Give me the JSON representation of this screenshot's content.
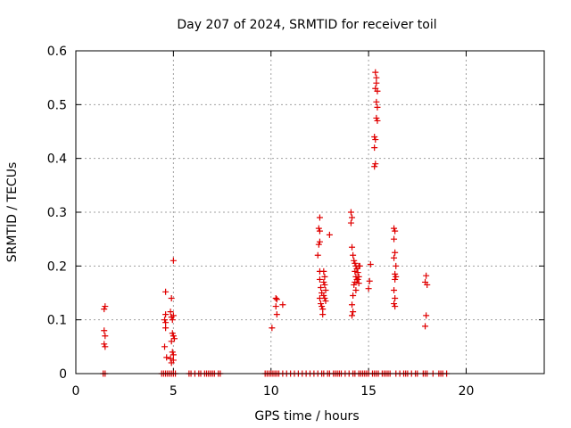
{
  "chart_data": {
    "type": "scatter",
    "title": "Day 207 of 2024, SRMTID for receiver toil",
    "xlabel": "GPS time / hours",
    "ylabel": "SRMTID / TECUs",
    "xlim": [
      0,
      24
    ],
    "ylim": [
      0,
      0.6
    ],
    "x_ticks": [
      0,
      5,
      10,
      15,
      20
    ],
    "x_tick_labels": [
      "0",
      "5",
      "10",
      "15",
      "20"
    ],
    "y_ticks": [
      0,
      0.1,
      0.2,
      0.3,
      0.4,
      0.5,
      0.6
    ],
    "y_tick_labels": [
      "0",
      "0.1",
      "0.2",
      "0.3",
      "0.4",
      "0.5",
      "0.6"
    ],
    "grid": true,
    "marker": "+",
    "color": "#e00000",
    "series": [
      {
        "name": "SRMTID",
        "points": [
          [
            1.4,
            0.0
          ],
          [
            1.5,
            0.0
          ],
          [
            1.45,
            0.12
          ],
          [
            1.5,
            0.125
          ],
          [
            1.45,
            0.08
          ],
          [
            1.5,
            0.07
          ],
          [
            1.45,
            0.055
          ],
          [
            1.5,
            0.05
          ],
          [
            4.4,
            0.0
          ],
          [
            4.5,
            0.0
          ],
          [
            4.6,
            0.0
          ],
          [
            4.7,
            0.0
          ],
          [
            4.8,
            0.0
          ],
          [
            4.9,
            0.0
          ],
          [
            5.0,
            0.0
          ],
          [
            5.1,
            0.0
          ],
          [
            4.6,
            0.152
          ],
          [
            4.6,
            0.11
          ],
          [
            4.55,
            0.1
          ],
          [
            4.6,
            0.095
          ],
          [
            4.6,
            0.085
          ],
          [
            4.55,
            0.05
          ],
          [
            4.65,
            0.03
          ],
          [
            4.85,
            0.115
          ],
          [
            4.9,
            0.105
          ],
          [
            4.95,
            0.1
          ],
          [
            5.0,
            0.108
          ],
          [
            4.9,
            0.14
          ],
          [
            5.0,
            0.21
          ],
          [
            4.95,
            0.075
          ],
          [
            5.0,
            0.07
          ],
          [
            5.05,
            0.065
          ],
          [
            4.9,
            0.06
          ],
          [
            4.95,
            0.04
          ],
          [
            5.0,
            0.035
          ],
          [
            4.85,
            0.028
          ],
          [
            4.9,
            0.02
          ],
          [
            5.0,
            0.025
          ],
          [
            5.8,
            0.0
          ],
          [
            5.9,
            0.0
          ],
          [
            6.1,
            0.0
          ],
          [
            6.3,
            0.0
          ],
          [
            6.4,
            0.0
          ],
          [
            6.6,
            0.0
          ],
          [
            6.7,
            0.0
          ],
          [
            6.8,
            0.0
          ],
          [
            6.9,
            0.0
          ],
          [
            7.0,
            0.0
          ],
          [
            7.1,
            0.0
          ],
          [
            7.3,
            0.0
          ],
          [
            7.4,
            0.0
          ],
          [
            9.7,
            0.0
          ],
          [
            9.8,
            0.0
          ],
          [
            9.9,
            0.0
          ],
          [
            10.0,
            0.0
          ],
          [
            10.1,
            0.0
          ],
          [
            10.2,
            0.0
          ],
          [
            10.3,
            0.0
          ],
          [
            10.4,
            0.0
          ],
          [
            10.6,
            0.0
          ],
          [
            10.8,
            0.0
          ],
          [
            11.0,
            0.0
          ],
          [
            11.2,
            0.0
          ],
          [
            11.4,
            0.0
          ],
          [
            11.6,
            0.0
          ],
          [
            11.8,
            0.0
          ],
          [
            12.0,
            0.0
          ],
          [
            12.2,
            0.0
          ],
          [
            12.4,
            0.0
          ],
          [
            10.05,
            0.085
          ],
          [
            10.25,
            0.14
          ],
          [
            10.3,
            0.138
          ],
          [
            10.25,
            0.125
          ],
          [
            10.3,
            0.11
          ],
          [
            10.6,
            0.128
          ],
          [
            12.5,
            0.29
          ],
          [
            12.45,
            0.27
          ],
          [
            12.5,
            0.265
          ],
          [
            12.5,
            0.245
          ],
          [
            12.45,
            0.24
          ],
          [
            12.4,
            0.22
          ],
          [
            12.5,
            0.19
          ],
          [
            12.5,
            0.175
          ],
          [
            12.55,
            0.16
          ],
          [
            12.6,
            0.15
          ],
          [
            12.5,
            0.14
          ],
          [
            12.55,
            0.13
          ],
          [
            12.6,
            0.125
          ],
          [
            12.65,
            0.11
          ],
          [
            12.7,
            0.19
          ],
          [
            12.75,
            0.18
          ],
          [
            12.7,
            0.17
          ],
          [
            12.75,
            0.165
          ],
          [
            12.8,
            0.155
          ],
          [
            12.7,
            0.145
          ],
          [
            12.75,
            0.14
          ],
          [
            12.8,
            0.135
          ],
          [
            12.65,
            0.12
          ],
          [
            13.0,
            0.258
          ],
          [
            12.6,
            0.0
          ],
          [
            12.7,
            0.0
          ],
          [
            12.9,
            0.0
          ],
          [
            13.0,
            0.0
          ],
          [
            13.2,
            0.0
          ],
          [
            13.3,
            0.0
          ],
          [
            13.4,
            0.0
          ],
          [
            13.5,
            0.0
          ],
          [
            13.6,
            0.0
          ],
          [
            13.8,
            0.0
          ],
          [
            14.0,
            0.0
          ],
          [
            14.1,
            0.3
          ],
          [
            14.15,
            0.29
          ],
          [
            14.1,
            0.28
          ],
          [
            14.15,
            0.235
          ],
          [
            14.2,
            0.22
          ],
          [
            14.25,
            0.21
          ],
          [
            14.3,
            0.205
          ],
          [
            14.35,
            0.2
          ],
          [
            14.4,
            0.195
          ],
          [
            14.3,
            0.19
          ],
          [
            14.35,
            0.18
          ],
          [
            14.4,
            0.175
          ],
          [
            14.3,
            0.17
          ],
          [
            14.25,
            0.165
          ],
          [
            14.35,
            0.155
          ],
          [
            14.2,
            0.145
          ],
          [
            14.15,
            0.128
          ],
          [
            14.2,
            0.115
          ],
          [
            14.15,
            0.108
          ],
          [
            14.5,
            0.2
          ],
          [
            14.45,
            0.188
          ],
          [
            14.5,
            0.18
          ],
          [
            14.45,
            0.175
          ],
          [
            14.5,
            0.168
          ],
          [
            14.55,
            0.2
          ],
          [
            15.1,
            0.203
          ],
          [
            15.05,
            0.172
          ],
          [
            15.0,
            0.158
          ],
          [
            15.35,
            0.56
          ],
          [
            15.4,
            0.55
          ],
          [
            15.4,
            0.54
          ],
          [
            15.35,
            0.53
          ],
          [
            15.45,
            0.525
          ],
          [
            15.4,
            0.505
          ],
          [
            15.45,
            0.495
          ],
          [
            15.4,
            0.475
          ],
          [
            15.45,
            0.47
          ],
          [
            15.3,
            0.44
          ],
          [
            15.35,
            0.435
          ],
          [
            15.3,
            0.42
          ],
          [
            15.35,
            0.39
          ],
          [
            15.3,
            0.385
          ],
          [
            14.2,
            0.0
          ],
          [
            14.3,
            0.0
          ],
          [
            14.5,
            0.0
          ],
          [
            14.6,
            0.0
          ],
          [
            14.7,
            0.0
          ],
          [
            14.8,
            0.0
          ],
          [
            14.9,
            0.0
          ],
          [
            15.0,
            0.0
          ],
          [
            15.2,
            0.0
          ],
          [
            15.3,
            0.0
          ],
          [
            15.4,
            0.0
          ],
          [
            15.5,
            0.0
          ],
          [
            15.7,
            0.0
          ],
          [
            15.8,
            0.0
          ],
          [
            15.9,
            0.0
          ],
          [
            16.0,
            0.0
          ],
          [
            16.1,
            0.0
          ],
          [
            16.3,
            0.27
          ],
          [
            16.35,
            0.265
          ],
          [
            16.3,
            0.25
          ],
          [
            16.35,
            0.225
          ],
          [
            16.3,
            0.215
          ],
          [
            16.4,
            0.2
          ],
          [
            16.35,
            0.185
          ],
          [
            16.4,
            0.18
          ],
          [
            16.35,
            0.175
          ],
          [
            16.3,
            0.155
          ],
          [
            16.35,
            0.14
          ],
          [
            16.3,
            0.13
          ],
          [
            16.35,
            0.125
          ],
          [
            16.4,
            0.0
          ],
          [
            16.6,
            0.0
          ],
          [
            16.8,
            0.0
          ],
          [
            16.9,
            0.0
          ],
          [
            17.0,
            0.0
          ],
          [
            17.2,
            0.0
          ],
          [
            17.4,
            0.0
          ],
          [
            17.5,
            0.0
          ],
          [
            17.8,
            0.0
          ],
          [
            17.9,
            0.0
          ],
          [
            18.0,
            0.0
          ],
          [
            18.3,
            0.0
          ],
          [
            18.6,
            0.0
          ],
          [
            18.7,
            0.0
          ],
          [
            18.8,
            0.0
          ],
          [
            19.0,
            0.0
          ],
          [
            17.95,
            0.182
          ],
          [
            17.9,
            0.17
          ],
          [
            18.0,
            0.165
          ],
          [
            17.95,
            0.108
          ],
          [
            17.9,
            0.088
          ]
        ]
      }
    ]
  }
}
